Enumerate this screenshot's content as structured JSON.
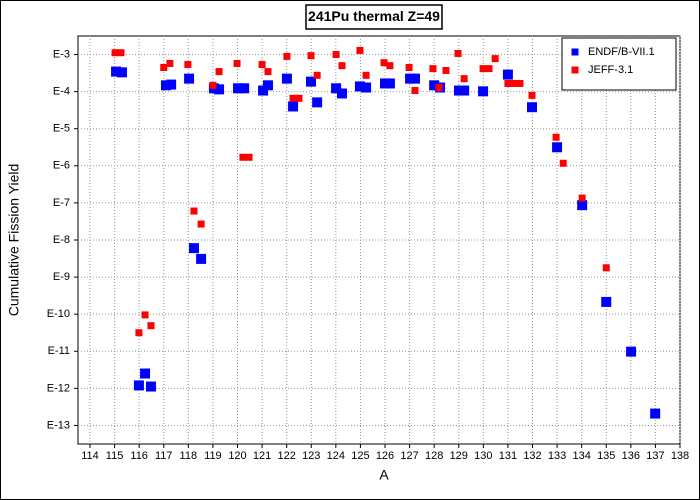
{
  "chart_data": {
    "type": "scatter",
    "title": "241Pu thermal Z=49",
    "xlabel": "A",
    "ylabel": "Cumulative Fission Yield",
    "log_y": true,
    "grid": true,
    "legend": "upper right",
    "xlim": [
      114,
      138
    ],
    "xticks": [
      114,
      115,
      116,
      117,
      118,
      119,
      120,
      121,
      122,
      123,
      124,
      125,
      126,
      127,
      128,
      129,
      130,
      131,
      132,
      133,
      134,
      135,
      136,
      137,
      138
    ],
    "ylim": [
      3.16e-14,
      0.00316
    ],
    "yticks": [
      {
        "value": 0.001,
        "label": "E-3"
      },
      {
        "value": 0.0001,
        "label": "E-4"
      },
      {
        "value": 1e-05,
        "label": "E-5"
      },
      {
        "value": 1e-06,
        "label": "E-6"
      },
      {
        "value": 1e-07,
        "label": "E-7"
      },
      {
        "value": 1e-08,
        "label": "E-8"
      },
      {
        "value": 1e-09,
        "label": "E-9"
      },
      {
        "value": 1e-10,
        "label": "E-10"
      },
      {
        "value": 1e-11,
        "label": "E-11"
      },
      {
        "value": 1e-12,
        "label": "E-12"
      },
      {
        "value": 1e-13,
        "label": "E-13"
      }
    ],
    "series": [
      {
        "name": "ENDF/B-VII.1",
        "color": "#0000ff",
        "marker_size": 10,
        "x": [
          115.06,
          115.3,
          115.99,
          116.24,
          116.48,
          117.09,
          117.3,
          118.03,
          118.23,
          118.52,
          119.04,
          119.25,
          120.02,
          120.27,
          121.04,
          121.24,
          122.01,
          122.26,
          122.99,
          123.24,
          124.01,
          124.25,
          124.98,
          125.23,
          126.0,
          126.2,
          127.02,
          127.22,
          128.0,
          128.24,
          129.01,
          129.22,
          129.99,
          131.0,
          131.98,
          133.0,
          134.02,
          135.0,
          136.01,
          136.99
        ],
        "values": [
          0.000347,
          0.000331,
          1.2e-12,
          2.51e-12,
          1.12e-12,
          0.000148,
          0.000155,
          0.000224,
          6.03e-09,
          3.09e-09,
          0.000123,
          0.000115,
          0.000123,
          0.000123,
          0.000107,
          0.000148,
          0.000224,
          3.98e-05,
          0.000186,
          5.13e-05,
          0.000123,
          8.91e-05,
          0.000138,
          0.000129,
          0.000166,
          0.000166,
          0.000224,
          0.000224,
          0.000148,
          0.000129,
          0.000107,
          0.000107,
          0.000102,
          0.000288,
          3.8e-05,
          3.16e-06,
          8.71e-08,
          2.14e-10,
          9.77e-12,
          2.09e-13
        ]
      },
      {
        "name": "JEFF-3.1",
        "color": "#ff0000",
        "marker_size": 7,
        "x": [
          115.02,
          115.26,
          115.99,
          116.24,
          116.48,
          117.0,
          117.25,
          117.98,
          118.23,
          118.52,
          119.0,
          119.25,
          119.98,
          120.22,
          120.47,
          121.0,
          121.24,
          122.01,
          122.26,
          122.5,
          122.99,
          123.24,
          124.01,
          124.25,
          124.98,
          125.23,
          125.96,
          126.2,
          126.98,
          127.22,
          127.95,
          128.2,
          128.48,
          128.97,
          129.22,
          129.99,
          130.23,
          130.48,
          131.0,
          131.25,
          131.49,
          131.98,
          132.96,
          133.25,
          134.02,
          135.0
        ],
        "values": [
          0.00112,
          0.00112,
          3.16e-11,
          9.55e-11,
          4.9e-11,
          0.000447,
          0.000575,
          0.000537,
          6.03e-08,
          2.69e-08,
          0.000148,
          0.000347,
          0.000575,
          1.7e-06,
          1.7e-06,
          0.000537,
          0.000347,
          0.000891,
          6.61e-05,
          6.61e-05,
          0.000933,
          0.000275,
          0.001,
          0.000501,
          0.00129,
          0.000275,
          0.000603,
          0.000501,
          0.000447,
          0.000107,
          0.000417,
          0.000129,
          0.000372,
          0.00107,
          0.000224,
          0.000417,
          0.000417,
          0.000776,
          0.000166,
          0.000166,
          0.000166,
          7.94e-05,
          5.89e-06,
          1.17e-06,
          1.35e-07,
          1.78e-09
        ]
      }
    ]
  }
}
